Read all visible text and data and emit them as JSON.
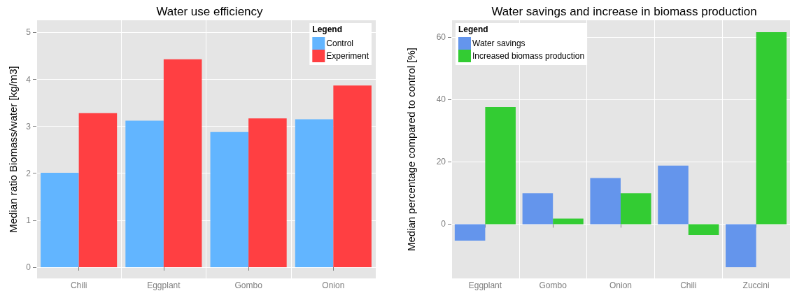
{
  "chart_data": [
    {
      "type": "bar",
      "title": "Water use efficiency",
      "ylabel": "Median ratio Biomass/water [kg/m3]",
      "categories": [
        "Chili",
        "Eggplant",
        "Gombo",
        "Onion"
      ],
      "legend_title": "Legend",
      "legend": "top right",
      "grid": true,
      "ylim": [
        -0.24,
        5.26
      ],
      "yticks": [
        0,
        1,
        2,
        3,
        4,
        5
      ],
      "series": [
        {
          "name": "Control",
          "color": "#62b5ff",
          "values": [
            2.01,
            3.12,
            2.88,
            3.15
          ]
        },
        {
          "name": "Experiment",
          "color": "#ff3f42",
          "values": [
            3.28,
            4.43,
            3.17,
            3.87
          ]
        }
      ]
    },
    {
      "type": "bar",
      "title": "Water savings and increase in biomass production",
      "ylabel": "Median percentage compared to control [%]",
      "categories": [
        "Eggplant",
        "Gombo",
        "Onion",
        "Chili",
        "Zuccini"
      ],
      "legend_title": "Legend",
      "legend": "top left",
      "grid": true,
      "ylim": [
        -17.4,
        65.4
      ],
      "yticks": [
        0,
        20,
        40,
        60
      ],
      "series": [
        {
          "name": "Water savings",
          "color": "#6495ec",
          "values": [
            -5.3,
            9.9,
            14.8,
            18.8,
            -13.8
          ]
        },
        {
          "name": "Increased biomass production",
          "color": "#33cc33",
          "values": [
            37.6,
            1.8,
            9.9,
            -3.5,
            61.6
          ]
        }
      ]
    }
  ]
}
